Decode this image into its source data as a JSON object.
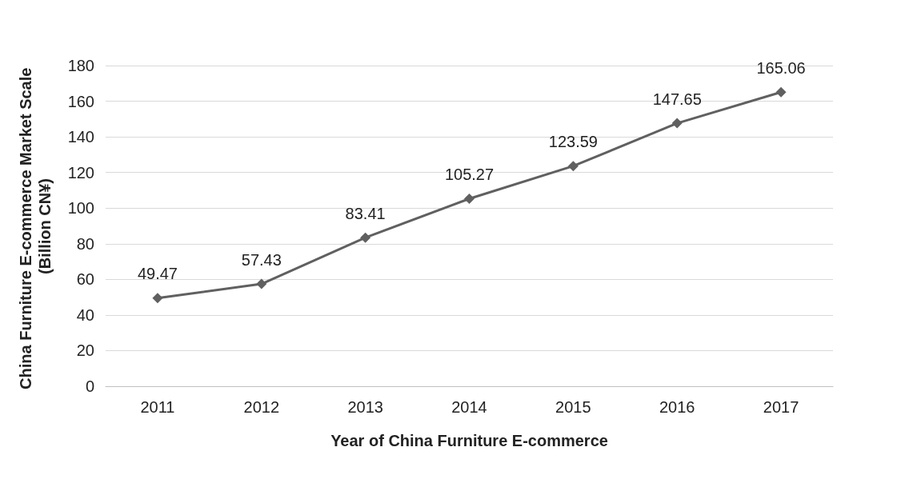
{
  "chart_data": {
    "type": "line",
    "xlabel": "Year of China Furniture E-commerce",
    "ylabel": "China Furniture E-commerce Market Scale (Billion CN¥)",
    "categories": [
      "2011",
      "2012",
      "2013",
      "2014",
      "2015",
      "2016",
      "2017"
    ],
    "series": [
      {
        "color": "#606060",
        "values": [
          49.47,
          57.43,
          83.41,
          105.27,
          123.59,
          147.65,
          165.06
        ]
      }
    ],
    "ylim": [
      0,
      180
    ],
    "yticks": [
      0,
      20,
      40,
      60,
      80,
      100,
      120,
      140,
      160,
      180
    ],
    "grid": "y",
    "marker": "diamond",
    "line_style": "solid",
    "data_labels": true
  }
}
